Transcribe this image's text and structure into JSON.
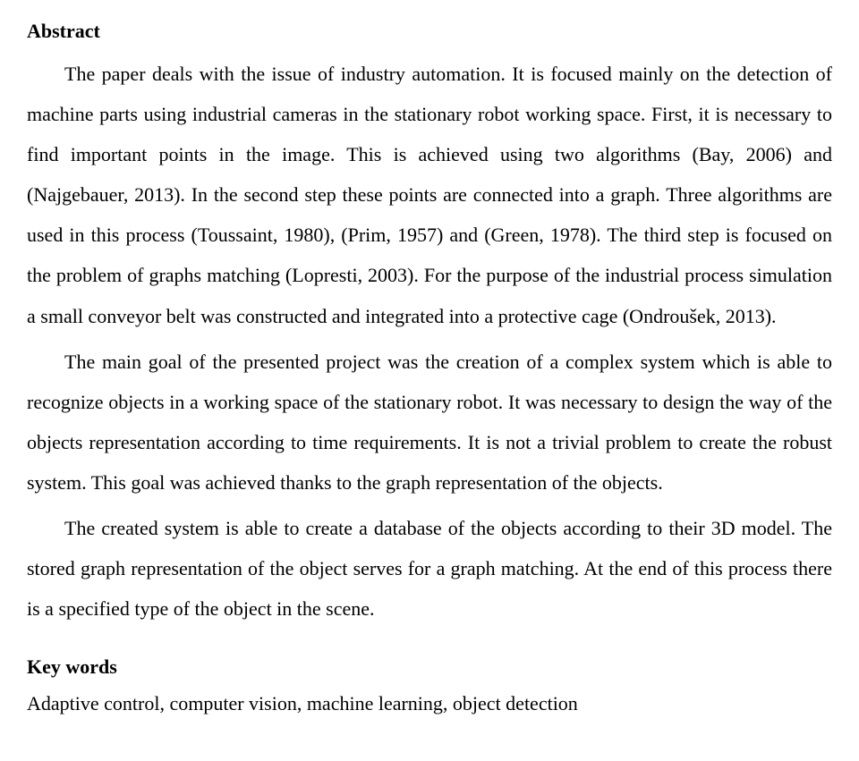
{
  "abstract": {
    "heading": "Abstract",
    "paragraphs": [
      "The paper deals with the issue of industry automation. It is focused mainly on the detection of machine parts using industrial cameras in the stationary robot working space. First, it is necessary to find important points in the image. This is achieved using two algorithms (Bay, 2006) and (Najgebauer, 2013). In the second step these points are connected into a graph. Three algorithms are used in this process (Toussaint, 1980), (Prim, 1957) and (Green, 1978). The third step is focused on the problem of graphs matching (Lopresti, 2003). For the purpose of the industrial process simulation a small conveyor belt was constructed and integrated into a protective cage (Ondroušek, 2013).",
      "The main goal of the presented project was the creation of a complex system which is able to recognize objects in a working space of the stationary robot. It was necessary to design the way of the objects representation according to time requirements. It is not a trivial problem to create the robust system. This goal was achieved thanks to the graph representation of the objects.",
      "The created system is able to create a database of the objects according to their 3D model. The stored graph representation of the object serves for a graph matching. At the end of this process there is a specified type of the object in the scene."
    ]
  },
  "keywords": {
    "heading": "Key words",
    "line": "Adaptive control, computer vision, machine learning, object detection"
  }
}
